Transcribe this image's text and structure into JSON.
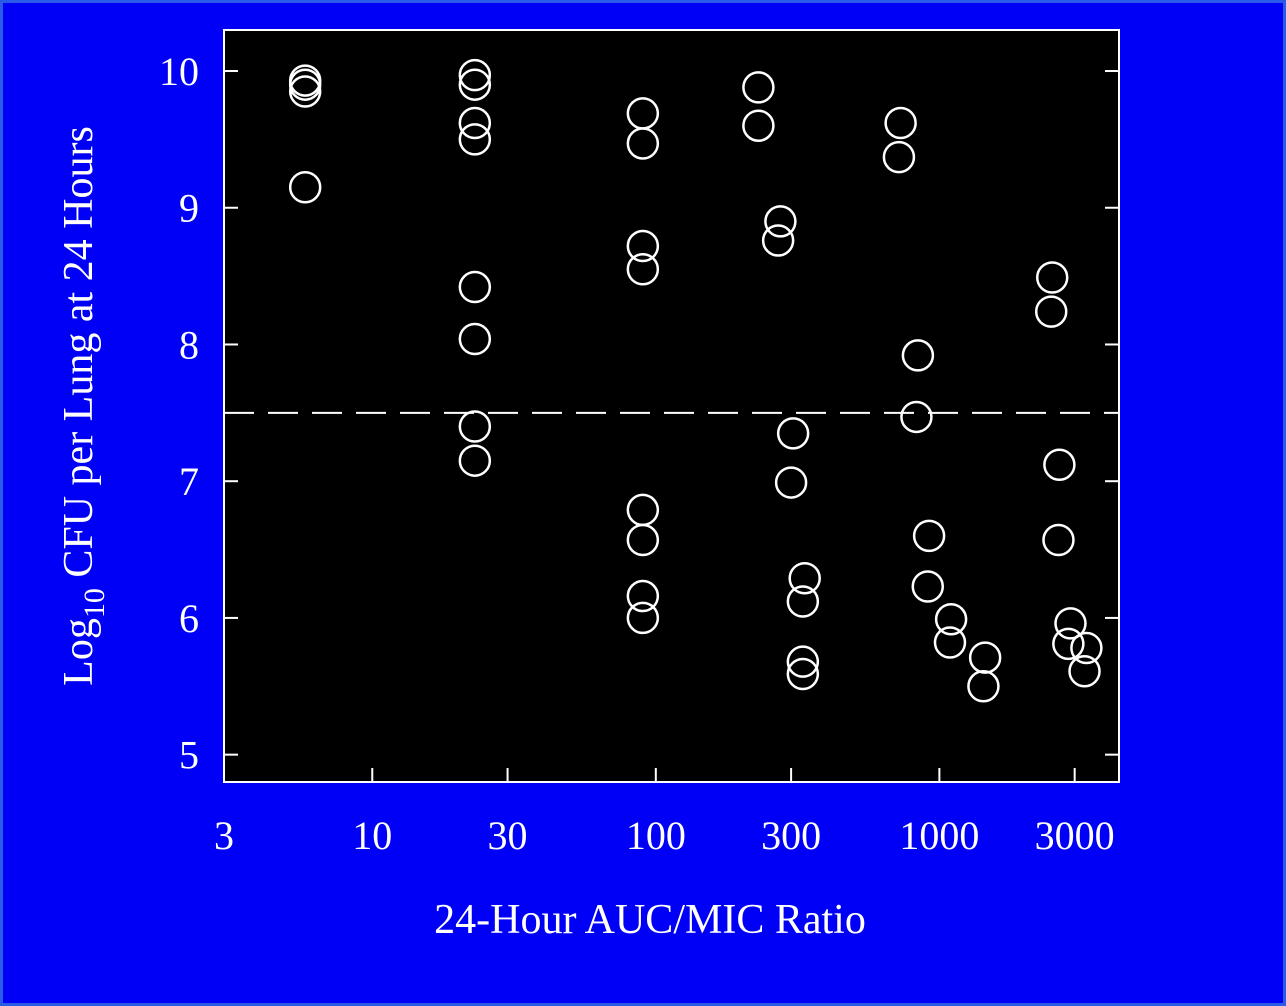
{
  "chart_data": {
    "type": "scatter",
    "xlabel": "24-Hour AUC/MIC Ratio",
    "ylabel": "Log",
    "ylabel_subscript": "10",
    "ylabel_rest": " CFU per Lung at 24 Hours",
    "x_scale": "log",
    "xlim": [
      3,
      4300
    ],
    "ylim": [
      4.8,
      10.3
    ],
    "x_ticks": [
      {
        "value": 3,
        "label": "3"
      },
      {
        "value": 10,
        "label": "10"
      },
      {
        "value": 30,
        "label": "30"
      },
      {
        "value": 100,
        "label": "100"
      },
      {
        "value": 300,
        "label": "300"
      },
      {
        "value": 1000,
        "label": "1000"
      },
      {
        "value": 3000,
        "label": "3000"
      }
    ],
    "y_ticks": [
      {
        "value": 5,
        "label": "5"
      },
      {
        "value": 6,
        "label": "6"
      },
      {
        "value": 7,
        "label": "7"
      },
      {
        "value": 8,
        "label": "8"
      },
      {
        "value": 9,
        "label": "9"
      },
      {
        "value": 10,
        "label": "10"
      }
    ],
    "reference_line": {
      "y": 7.5,
      "style": "dashed"
    },
    "colors": {
      "background": "#0000f6",
      "plot_area": "#000000",
      "foreground": "#ffffff"
    },
    "points": [
      {
        "x": 5.8,
        "y": 9.93
      },
      {
        "x": 5.8,
        "y": 9.85
      },
      {
        "x": 5.8,
        "y": 9.9
      },
      {
        "x": 5.8,
        "y": 9.15
      },
      {
        "x": 23,
        "y": 9.97
      },
      {
        "x": 23,
        "y": 9.9
      },
      {
        "x": 23,
        "y": 9.62
      },
      {
        "x": 23,
        "y": 9.5
      },
      {
        "x": 23,
        "y": 8.42
      },
      {
        "x": 23,
        "y": 8.04
      },
      {
        "x": 23,
        "y": 7.4
      },
      {
        "x": 23,
        "y": 7.15
      },
      {
        "x": 90,
        "y": 9.69
      },
      {
        "x": 90,
        "y": 9.47
      },
      {
        "x": 90,
        "y": 8.72
      },
      {
        "x": 90,
        "y": 8.55
      },
      {
        "x": 90,
        "y": 6.79
      },
      {
        "x": 90,
        "y": 6.57
      },
      {
        "x": 90,
        "y": 6.16
      },
      {
        "x": 90,
        "y": 6.0
      },
      {
        "x": 230,
        "y": 9.88
      },
      {
        "x": 230,
        "y": 9.6
      },
      {
        "x": 275,
        "y": 8.9
      },
      {
        "x": 270,
        "y": 8.76
      },
      {
        "x": 305,
        "y": 7.35
      },
      {
        "x": 300,
        "y": 6.99
      },
      {
        "x": 335,
        "y": 6.29
      },
      {
        "x": 330,
        "y": 6.12
      },
      {
        "x": 330,
        "y": 5.68
      },
      {
        "x": 330,
        "y": 5.59
      },
      {
        "x": 730,
        "y": 9.62
      },
      {
        "x": 720,
        "y": 9.37
      },
      {
        "x": 840,
        "y": 7.92
      },
      {
        "x": 830,
        "y": 7.47
      },
      {
        "x": 920,
        "y": 6.6
      },
      {
        "x": 910,
        "y": 6.23
      },
      {
        "x": 1100,
        "y": 5.99
      },
      {
        "x": 1090,
        "y": 5.82
      },
      {
        "x": 1450,
        "y": 5.71
      },
      {
        "x": 1430,
        "y": 5.5
      },
      {
        "x": 2500,
        "y": 8.49
      },
      {
        "x": 2480,
        "y": 8.24
      },
      {
        "x": 2650,
        "y": 7.12
      },
      {
        "x": 2630,
        "y": 6.57
      },
      {
        "x": 2900,
        "y": 5.96
      },
      {
        "x": 2850,
        "y": 5.81
      },
      {
        "x": 3300,
        "y": 5.78
      },
      {
        "x": 3250,
        "y": 5.61
      }
    ]
  }
}
